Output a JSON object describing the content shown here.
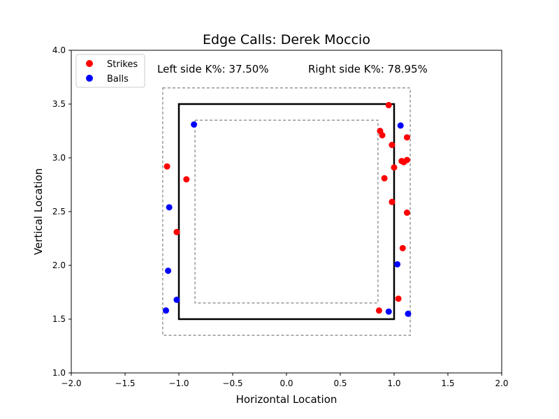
{
  "chart_data": {
    "type": "scatter",
    "title": "Edge Calls: Derek Moccio",
    "xlabel": "Horizontal Location",
    "ylabel": "Vertical Location",
    "xlim": [
      -2.0,
      2.0
    ],
    "ylim": [
      1.0,
      4.0
    ],
    "xticks": [
      "−2.0",
      "−1.5",
      "−1.0",
      "−0.5",
      "0.0",
      "0.5",
      "1.0",
      "1.5",
      "2.0"
    ],
    "yticks": [
      "1.0",
      "1.5",
      "2.0",
      "2.5",
      "3.0",
      "3.5",
      "4.0"
    ],
    "xtick_values": [
      -2.0,
      -1.5,
      -1.0,
      -0.5,
      0.0,
      0.5,
      1.0,
      1.5,
      2.0
    ],
    "ytick_values": [
      1.0,
      1.5,
      2.0,
      2.5,
      3.0,
      3.5,
      4.0
    ],
    "legend_position": "top-left",
    "grid": false,
    "annotations": {
      "left": "Left side K%: 37.50%",
      "right": "Right side K%: 78.95%"
    },
    "zones": {
      "strike_zone": {
        "x": [
          -1.0,
          1.0
        ],
        "y": [
          1.5,
          3.5
        ]
      },
      "outer_zone": {
        "x": [
          -1.15,
          1.15
        ],
        "y": [
          1.35,
          3.65
        ]
      },
      "inner_zone": {
        "x": [
          -0.85,
          0.85
        ],
        "y": [
          1.65,
          3.35
        ]
      }
    },
    "series": [
      {
        "name": "Strikes",
        "color": "#ff0000",
        "points": [
          [
            0.95,
            3.49
          ],
          [
            0.87,
            3.25
          ],
          [
            0.89,
            3.21
          ],
          [
            0.98,
            3.12
          ],
          [
            1.12,
            3.19
          ],
          [
            1.07,
            2.97
          ],
          [
            1.09,
            2.96
          ],
          [
            1.12,
            2.98
          ],
          [
            1.0,
            2.91
          ],
          [
            0.91,
            2.81
          ],
          [
            0.98,
            2.59
          ],
          [
            1.12,
            2.49
          ],
          [
            1.08,
            2.16
          ],
          [
            1.04,
            1.69
          ],
          [
            0.86,
            1.58
          ],
          [
            -1.11,
            2.92
          ],
          [
            -0.93,
            2.8
          ],
          [
            -1.02,
            2.31
          ]
        ]
      },
      {
        "name": "Balls",
        "color": "#0000ff",
        "points": [
          [
            -0.86,
            3.31
          ],
          [
            1.06,
            3.3
          ],
          [
            -1.09,
            2.54
          ],
          [
            -1.1,
            1.95
          ],
          [
            -1.02,
            1.68
          ],
          [
            -1.12,
            1.58
          ],
          [
            1.03,
            2.01
          ],
          [
            0.95,
            1.57
          ],
          [
            1.13,
            1.55
          ]
        ]
      }
    ]
  }
}
